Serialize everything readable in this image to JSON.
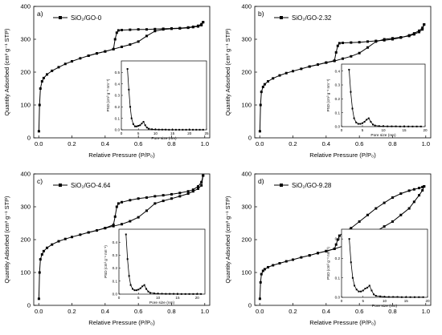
{
  "figure": {
    "background": "#ffffff",
    "line_color": "#000000"
  },
  "chart_data": [
    {
      "type": "line",
      "panel_label": "a)",
      "legend_label": "SiO₂/GO-0",
      "xlabel": "Relative Pressure (P/P₀)",
      "ylabel": "Quantity Adsorbed (cm³ g⁻¹ STP)",
      "xlim": [
        -0.03,
        1.03
      ],
      "ylim": [
        0,
        400
      ],
      "xticks": [
        0.0,
        0.2,
        0.4,
        0.6,
        0.8,
        1.0
      ],
      "xtick_labels": [
        "0.0",
        "0.2",
        "0.4",
        "0.6",
        "0.8",
        "1.0"
      ],
      "yticks": [
        0,
        100,
        200,
        300,
        400
      ],
      "ytick_labels": [
        "0",
        "100",
        "200",
        "300",
        "400"
      ],
      "legend_position": "top-left",
      "series": [
        {
          "name": "adsorption",
          "x": [
            0.001,
            0.005,
            0.01,
            0.02,
            0.03,
            0.05,
            0.08,
            0.12,
            0.16,
            0.2,
            0.25,
            0.3,
            0.35,
            0.4,
            0.45,
            0.5,
            0.55,
            0.6,
            0.65,
            0.7,
            0.75,
            0.8,
            0.85,
            0.9,
            0.93,
            0.96,
            0.98,
            0.99
          ],
          "y": [
            20,
            100,
            150,
            172,
            182,
            193,
            204,
            215,
            225,
            233,
            242,
            250,
            257,
            263,
            270,
            277,
            284,
            293,
            310,
            325,
            330,
            332,
            333,
            335,
            337,
            339,
            343,
            352
          ]
        },
        {
          "name": "desorption",
          "x": [
            0.99,
            0.98,
            0.96,
            0.93,
            0.9,
            0.85,
            0.8,
            0.75,
            0.7,
            0.65,
            0.6,
            0.55,
            0.5,
            0.48,
            0.47,
            0.46,
            0.45,
            0.4,
            0.35,
            0.3
          ],
          "y": [
            352,
            346,
            341,
            338,
            336,
            334,
            333,
            332,
            331,
            330,
            330,
            329,
            328,
            327,
            320,
            300,
            270,
            263,
            257,
            250
          ]
        }
      ],
      "inset": {
        "xlabel": "Pore size (nm)",
        "ylabel": "PSD (cm³ g⁻¹ nm⁻¹)",
        "xlim": [
          0,
          25
        ],
        "ylim": [
          0,
          0.6
        ],
        "xticks": [
          0,
          5,
          10,
          15,
          20,
          25
        ],
        "xtick_labels": [
          "0",
          "5",
          "10",
          "15",
          "20",
          "25"
        ],
        "yticks": [
          0.0,
          0.1,
          0.2,
          0.3,
          0.4,
          0.5
        ],
        "ytick_labels": [
          "0.0",
          "0.1",
          "0.2",
          "0.3",
          "0.4",
          "0.5"
        ],
        "x": [
          1.8,
          2.2,
          2.6,
          3,
          3.5,
          4,
          4.5,
          5,
          5.5,
          6,
          6.5,
          7,
          7.5,
          8,
          9,
          10,
          11,
          12,
          13,
          14,
          15,
          16,
          17,
          18,
          19,
          20,
          21,
          22,
          23,
          24
        ],
        "y": [
          0.53,
          0.35,
          0.2,
          0.1,
          0.05,
          0.03,
          0.03,
          0.035,
          0.04,
          0.055,
          0.07,
          0.04,
          0.02,
          0.01,
          0.005,
          0.003,
          0.002,
          0.002,
          0.002,
          0.001,
          0.001,
          0.001,
          0.001,
          0.001,
          0.001,
          0.001,
          0.001,
          0.001,
          0.001,
          0.001
        ]
      }
    },
    {
      "type": "line",
      "panel_label": "b)",
      "legend_label": "SiO₂/GO-2.32",
      "xlabel": "Relative Pressure (P/P₀)",
      "ylabel": "Quantity Adsorbed (cm³ g⁻¹ STP)",
      "xlim": [
        -0.03,
        1.03
      ],
      "ylim": [
        0,
        400
      ],
      "xticks": [
        0.0,
        0.2,
        0.4,
        0.6,
        0.8,
        1.0
      ],
      "xtick_labels": [
        "0.0",
        "0.2",
        "0.4",
        "0.6",
        "0.8",
        "1.0"
      ],
      "yticks": [
        0,
        100,
        200,
        300,
        400
      ],
      "ytick_labels": [
        "0",
        "100",
        "200",
        "300",
        "400"
      ],
      "legend_position": "top-left",
      "series": [
        {
          "name": "adsorption",
          "x": [
            0.001,
            0.005,
            0.01,
            0.02,
            0.03,
            0.05,
            0.08,
            0.12,
            0.16,
            0.2,
            0.25,
            0.3,
            0.35,
            0.4,
            0.45,
            0.5,
            0.55,
            0.6,
            0.65,
            0.7,
            0.75,
            0.8,
            0.85,
            0.9,
            0.93,
            0.96,
            0.98,
            0.99
          ],
          "y": [
            20,
            100,
            140,
            155,
            163,
            172,
            181,
            190,
            197,
            203,
            210,
            217,
            223,
            229,
            234,
            241,
            248,
            258,
            275,
            293,
            300,
            303,
            306,
            310,
            315,
            322,
            330,
            345
          ]
        },
        {
          "name": "desorption",
          "x": [
            0.99,
            0.98,
            0.96,
            0.93,
            0.9,
            0.85,
            0.8,
            0.75,
            0.7,
            0.65,
            0.6,
            0.55,
            0.5,
            0.48,
            0.47,
            0.46,
            0.45,
            0.4,
            0.35,
            0.3
          ],
          "y": [
            345,
            335,
            326,
            318,
            312,
            305,
            300,
            297,
            295,
            293,
            291,
            290,
            289,
            288,
            280,
            260,
            235,
            229,
            223,
            217
          ]
        }
      ],
      "inset": {
        "xlabel": "Pore size (nm)",
        "ylabel": "PSD (cm³ g⁻¹ nm⁻¹)",
        "xlim": [
          0,
          20
        ],
        "ylim": [
          0,
          0.45
        ],
        "xticks": [
          0,
          5,
          10,
          15,
          20
        ],
        "xtick_labels": [
          "0",
          "5",
          "10",
          "15",
          "20"
        ],
        "yticks": [
          0.0,
          0.1,
          0.2,
          0.3,
          0.4
        ],
        "ytick_labels": [
          "0.0",
          "0.1",
          "0.2",
          "0.3",
          "0.4"
        ],
        "x": [
          1.8,
          2.2,
          2.6,
          3,
          3.5,
          4,
          4.5,
          5,
          5.5,
          6,
          6.5,
          7,
          7.5,
          8,
          9,
          10,
          11,
          12,
          13,
          14,
          15,
          16,
          17,
          18,
          19
        ],
        "y": [
          0.41,
          0.25,
          0.13,
          0.06,
          0.03,
          0.02,
          0.02,
          0.025,
          0.035,
          0.05,
          0.06,
          0.035,
          0.015,
          0.008,
          0.004,
          0.003,
          0.002,
          0.002,
          0.002,
          0.001,
          0.001,
          0.001,
          0.001,
          0.001,
          0.001
        ]
      }
    },
    {
      "type": "line",
      "panel_label": "c)",
      "legend_label": "SiO₂/GO-4.64",
      "xlabel": "Relative Pressure (P/P₀)",
      "ylabel": "Quantity Adsorbed (cm³ g⁻¹ STP)",
      "xlim": [
        -0.03,
        1.03
      ],
      "ylim": [
        0,
        400
      ],
      "xticks": [
        0.0,
        0.2,
        0.4,
        0.6,
        0.8,
        1.0
      ],
      "xtick_labels": [
        "0.0",
        "0.2",
        "0.4",
        "0.6",
        "0.8",
        "1.0"
      ],
      "yticks": [
        0,
        100,
        200,
        300,
        400
      ],
      "ytick_labels": [
        "0",
        "100",
        "200",
        "300",
        "400"
      ],
      "legend_position": "top-left",
      "series": [
        {
          "name": "adsorption",
          "x": [
            0.001,
            0.005,
            0.01,
            0.02,
            0.03,
            0.05,
            0.08,
            0.12,
            0.16,
            0.2,
            0.25,
            0.3,
            0.35,
            0.4,
            0.45,
            0.5,
            0.55,
            0.6,
            0.65,
            0.7,
            0.75,
            0.8,
            0.85,
            0.9,
            0.93,
            0.96,
            0.98,
            0.99
          ],
          "y": [
            20,
            100,
            140,
            155,
            165,
            175,
            185,
            195,
            202,
            208,
            215,
            222,
            228,
            235,
            241,
            247,
            256,
            268,
            288,
            310,
            318,
            325,
            332,
            340,
            347,
            355,
            365,
            395
          ]
        },
        {
          "name": "desorption",
          "x": [
            0.99,
            0.98,
            0.96,
            0.93,
            0.9,
            0.85,
            0.8,
            0.75,
            0.7,
            0.65,
            0.6,
            0.55,
            0.5,
            0.48,
            0.47,
            0.46,
            0.45,
            0.4,
            0.35,
            0.3
          ],
          "y": [
            395,
            375,
            362,
            352,
            347,
            342,
            338,
            335,
            332,
            328,
            325,
            320,
            314,
            310,
            300,
            270,
            245,
            235,
            228,
            222
          ]
        }
      ],
      "inset": {
        "xlabel": "Pore size (nm)",
        "ylabel": "PSD (cm³ g⁻¹ nm⁻¹)",
        "xlim": [
          0,
          22
        ],
        "ylim": [
          0,
          0.5
        ],
        "xticks": [
          0,
          5,
          10,
          15,
          20
        ],
        "xtick_labels": [
          "0",
          "5",
          "10",
          "15",
          "20"
        ],
        "yticks": [
          0.0,
          0.1,
          0.2,
          0.3,
          0.4
        ],
        "ytick_labels": [
          "0.0",
          "0.1",
          "0.2",
          "0.3",
          "0.4"
        ],
        "x": [
          1.8,
          2.2,
          2.6,
          3,
          3.5,
          4,
          4.5,
          5,
          5.5,
          6,
          6.5,
          7,
          7.5,
          8,
          9,
          10,
          11,
          12,
          13,
          14,
          15,
          16,
          17,
          18,
          19,
          20,
          21
        ],
        "y": [
          0.46,
          0.27,
          0.14,
          0.07,
          0.04,
          0.03,
          0.03,
          0.035,
          0.045,
          0.06,
          0.07,
          0.04,
          0.02,
          0.01,
          0.006,
          0.004,
          0.003,
          0.002,
          0.002,
          0.002,
          0.001,
          0.001,
          0.001,
          0.001,
          0.001,
          0.001,
          0.001
        ]
      }
    },
    {
      "type": "line",
      "panel_label": "d)",
      "legend_label": "SiO₂/GO-9.28",
      "xlabel": "Relative Pressure (P/P₀)",
      "ylabel": "Quantity Adsorbed (cm³ g⁻¹ STP)",
      "xlim": [
        -0.03,
        1.03
      ],
      "ylim": [
        0,
        400
      ],
      "xticks": [
        0.0,
        0.2,
        0.4,
        0.6,
        0.8,
        1.0
      ],
      "xtick_labels": [
        "0.0",
        "0.2",
        "0.4",
        "0.6",
        "0.8",
        "1.0"
      ],
      "yticks": [
        0,
        100,
        200,
        300,
        400
      ],
      "ytick_labels": [
        "0",
        "100",
        "200",
        "300",
        "400"
      ],
      "legend_position": "top-left",
      "series": [
        {
          "name": "adsorption",
          "x": [
            0.001,
            0.005,
            0.01,
            0.02,
            0.03,
            0.05,
            0.08,
            0.12,
            0.16,
            0.2,
            0.25,
            0.3,
            0.35,
            0.4,
            0.45,
            0.5,
            0.55,
            0.6,
            0.65,
            0.7,
            0.75,
            0.8,
            0.85,
            0.9,
            0.93,
            0.96,
            0.98,
            0.99
          ],
          "y": [
            20,
            70,
            95,
            105,
            110,
            116,
            122,
            128,
            134,
            139,
            146,
            152,
            159,
            165,
            172,
            180,
            190,
            200,
            212,
            225,
            240,
            255,
            275,
            295,
            315,
            335,
            350,
            362
          ]
        },
        {
          "name": "desorption",
          "x": [
            0.99,
            0.98,
            0.96,
            0.93,
            0.9,
            0.85,
            0.8,
            0.75,
            0.7,
            0.65,
            0.6,
            0.55,
            0.5,
            0.48,
            0.47,
            0.46,
            0.45,
            0.4,
            0.35,
            0.3
          ],
          "y": [
            362,
            360,
            357,
            353,
            349,
            340,
            328,
            312,
            295,
            275,
            255,
            235,
            220,
            212,
            200,
            185,
            172,
            165,
            159,
            152
          ]
        }
      ],
      "inset": {
        "xlabel": "Pore size (nm)",
        "ylabel": "PSD (cm³ g⁻¹ nm⁻¹)",
        "xlim": [
          0,
          20
        ],
        "ylim": [
          0,
          0.35
        ],
        "xticks": [
          0,
          5,
          10,
          15,
          20
        ],
        "xtick_labels": [
          "0",
          "5",
          "10",
          "15",
          "20"
        ],
        "yticks": [
          0.0,
          0.1,
          0.2,
          0.3
        ],
        "ytick_labels": [
          "0.0",
          "0.1",
          "0.2",
          "0.3"
        ],
        "x": [
          1.8,
          2.2,
          2.6,
          3,
          3.5,
          4,
          4.5,
          5,
          5.5,
          6,
          6.5,
          7,
          7.5,
          8,
          9,
          10,
          11,
          12,
          13,
          14,
          15,
          16,
          17,
          18,
          19
        ],
        "y": [
          0.3,
          0.18,
          0.1,
          0.06,
          0.04,
          0.03,
          0.03,
          0.035,
          0.045,
          0.05,
          0.06,
          0.035,
          0.015,
          0.008,
          0.005,
          0.003,
          0.002,
          0.002,
          0.002,
          0.001,
          0.001,
          0.001,
          0.001,
          0.001,
          0.001
        ]
      }
    }
  ]
}
